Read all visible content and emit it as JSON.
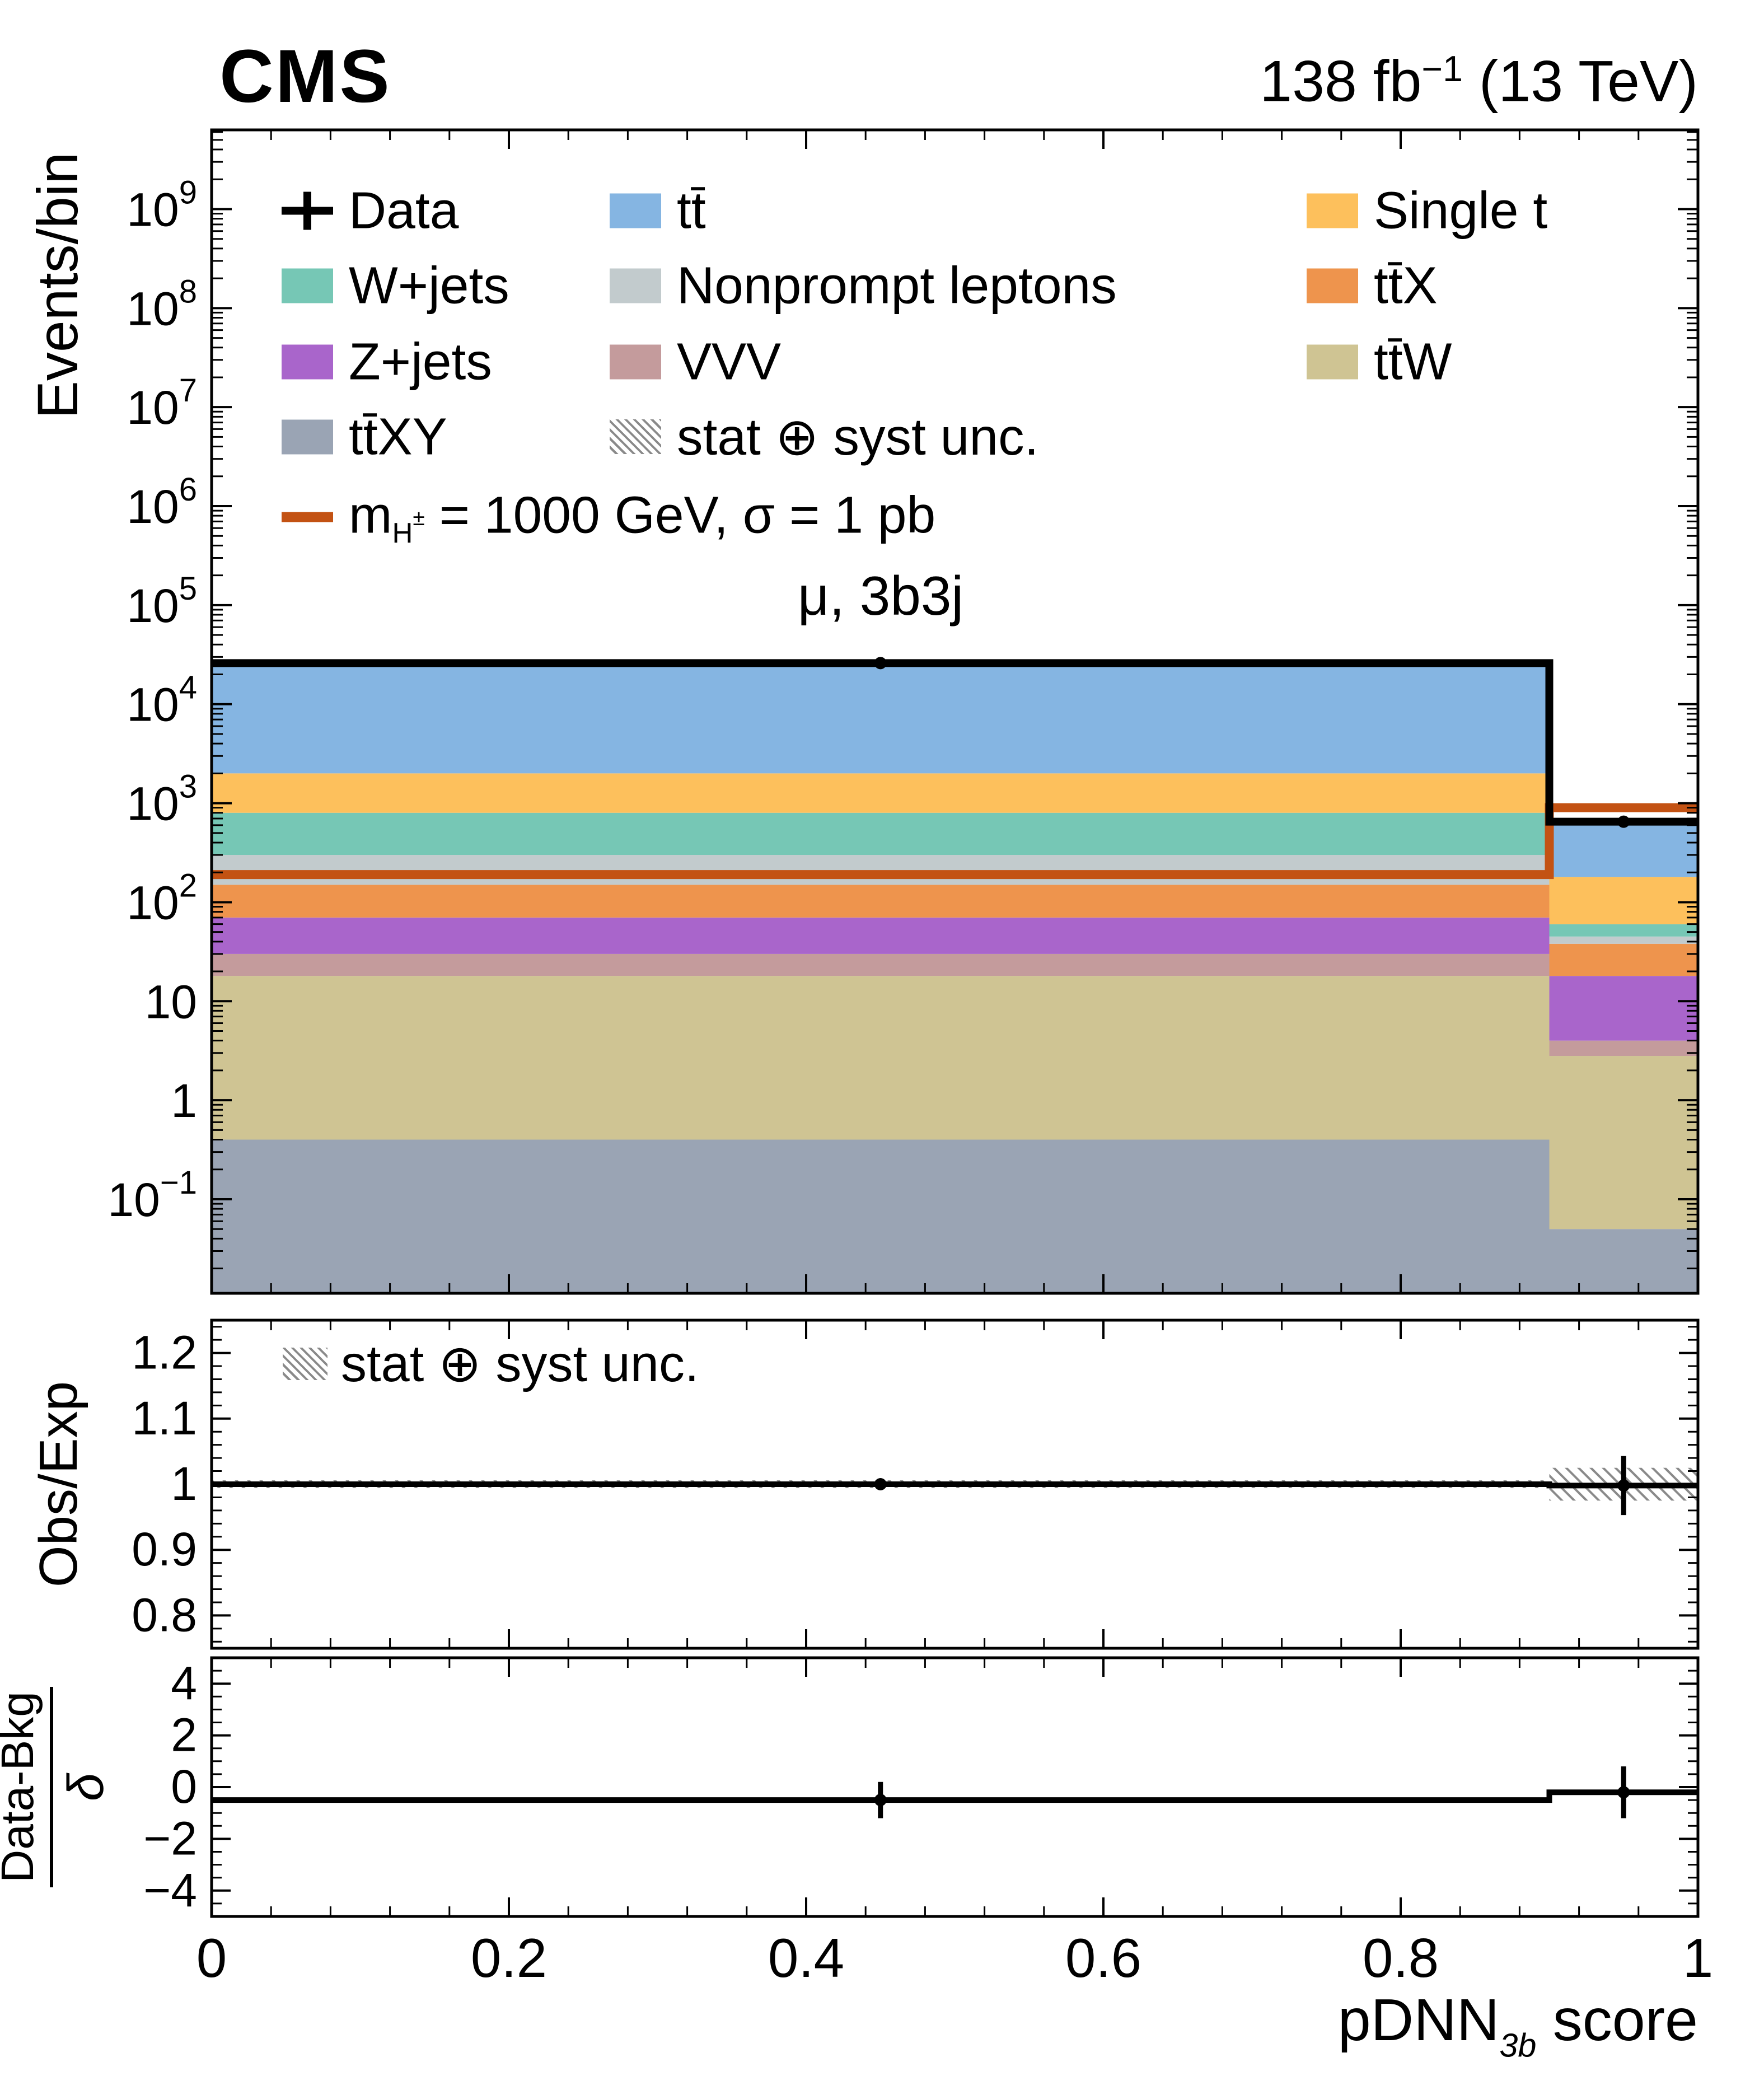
{
  "header": {
    "experiment": "CMS",
    "lumi_prefix": "138 fb",
    "lumi_sup": "−1",
    "lumi_suffix": " (13 TeV)"
  },
  "chart_data": {
    "type": "bar",
    "subtype": "stacked-histogram-log-y",
    "title": "μ, 3b3j",
    "ylabel": "Events/bin",
    "xlabel_parts": {
      "pre": "pDNN",
      "sub": "3b",
      "post": " score"
    },
    "xlim": [
      0,
      1
    ],
    "ylog_min_exp": -1.95,
    "ylog_max_exp": 9.8,
    "grid": false,
    "legend_position": "top-left-inside",
    "x_ticks": [
      0,
      0.2,
      0.4,
      0.6,
      0.8,
      1
    ],
    "x_tick_labels": [
      "0",
      "0.2",
      "0.4",
      "0.6",
      "0.8",
      "1"
    ],
    "y_tick_exponents": [
      -1,
      0,
      1,
      2,
      3,
      4,
      5,
      6,
      7,
      8,
      9
    ],
    "bin_edges": [
      0,
      0.9,
      1.0
    ],
    "series": [
      {
        "name": "tt̄XY",
        "color": "#9aa4b4",
        "values": [
          0.4,
          0.05
        ]
      },
      {
        "name": "tt̄W",
        "color": "#cfc493",
        "values": [
          17.6,
          2.75
        ]
      },
      {
        "name": "VVV",
        "color": "#c49b9c",
        "values": [
          12,
          1.2
        ]
      },
      {
        "name": "Z+jets",
        "color": "#a965cb",
        "values": [
          40,
          14
        ]
      },
      {
        "name": "tt̄X",
        "color": "#ee944d",
        "values": [
          80,
          20
        ]
      },
      {
        "name": "Nonprompt leptons",
        "color": "#c2cbcd",
        "values": [
          150,
          7
        ]
      },
      {
        "name": "W+jets",
        "color": "#76c7b5",
        "values": [
          500,
          15
        ]
      },
      {
        "name": "Single t",
        "color": "#fdc05c",
        "values": [
          1200,
          120
        ]
      },
      {
        "name": "tt̄",
        "color": "#85b5e2",
        "values": [
          24000,
          440
        ]
      }
    ],
    "signal": {
      "color": "#c35213",
      "values": [
        190,
        900
      ]
    },
    "data_points": {
      "x": [
        0.45,
        0.95
      ],
      "y": [
        26000,
        650
      ],
      "yerr": [
        161,
        26
      ]
    }
  },
  "ratio_panel": {
    "ylabel": "Obs/Exp",
    "unc_label": "stat ⊕ syst unc.",
    "ylim": [
      0.75,
      1.25
    ],
    "yticks": [
      0.8,
      0.9,
      1.0,
      1.1,
      1.2
    ],
    "line_values": [
      1.0,
      0.998
    ],
    "band": [
      {
        "lo": 0.994,
        "hi": 1.006
      },
      {
        "lo": 0.975,
        "hi": 1.025
      }
    ],
    "points": {
      "x": [
        0.45,
        0.95
      ],
      "y": [
        1.0,
        0.998
      ],
      "yerr": [
        0.004,
        0.045
      ]
    }
  },
  "pull_panel": {
    "ylabel_num": "Data-Bkg",
    "ylabel_den": "δ",
    "ylim": [
      -5,
      5
    ],
    "yticks": [
      -4,
      -2,
      0,
      2,
      4
    ],
    "line_values": [
      -0.5,
      -0.2
    ],
    "points": {
      "x": [
        0.45,
        0.95
      ],
      "y": [
        -0.5,
        -0.2
      ],
      "yerr": [
        0.7,
        1.0
      ]
    }
  },
  "legend": {
    "items": [
      {
        "row": 0,
        "col": 0,
        "type": "data",
        "label": "Data"
      },
      {
        "row": 0,
        "col": 1,
        "type": "box",
        "color": "#85b5e2",
        "label": "tt̄"
      },
      {
        "row": 0,
        "col": 2,
        "type": "box",
        "color": "#fdc05c",
        "label": "Single t"
      },
      {
        "row": 1,
        "col": 0,
        "type": "box",
        "color": "#76c7b5",
        "label": "W+jets"
      },
      {
        "row": 1,
        "col": 1,
        "type": "box",
        "color": "#c2cbcd",
        "label": "Nonprompt leptons"
      },
      {
        "row": 1,
        "col": 2,
        "type": "box",
        "color": "#ee944d",
        "label": "tt̄X"
      },
      {
        "row": 2,
        "col": 0,
        "type": "box",
        "color": "#a965cb",
        "label": "Z+jets"
      },
      {
        "row": 2,
        "col": 1,
        "type": "box",
        "color": "#c49b9c",
        "label": "VVV"
      },
      {
        "row": 2,
        "col": 2,
        "type": "box",
        "color": "#cfc493",
        "label": "tt̄W"
      },
      {
        "row": 3,
        "col": 0,
        "type": "box",
        "color": "#9aa4b4",
        "label": "tt̄XY"
      },
      {
        "row": 3,
        "col": 1,
        "type": "hatch",
        "label": "stat ⊕ syst unc."
      },
      {
        "row": 4,
        "col": 0,
        "type": "signal",
        "label_parts": {
          "pre": "m",
          "sub": "H",
          "subsup": "±",
          "post": " = 1000 GeV, σ = 1 pb"
        }
      }
    ]
  }
}
